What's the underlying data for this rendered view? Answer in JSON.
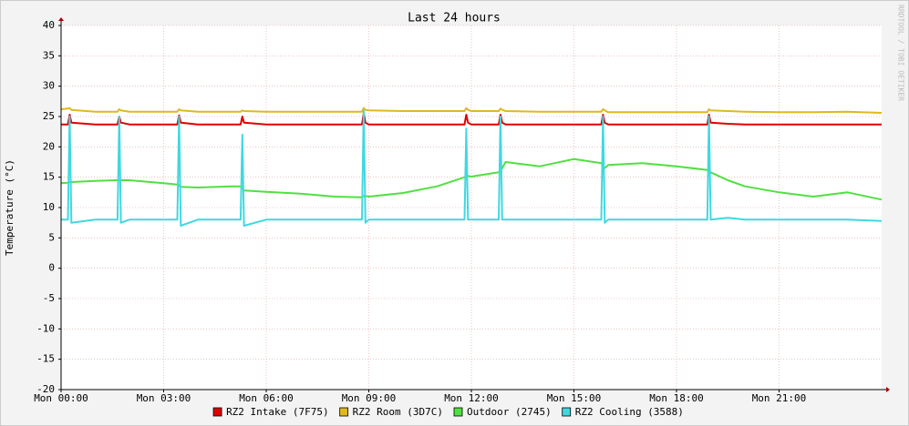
{
  "chart_data": {
    "type": "line",
    "title": "Last 24 hours",
    "y_label": "Temperature (°C)",
    "watermark": "RRDTOOL / TOBI OETIKER",
    "x": [
      0,
      0.2,
      0.25,
      0.3,
      1,
      1.65,
      1.7,
      1.75,
      2,
      3,
      3.4,
      3.45,
      3.5,
      4,
      5,
      5.25,
      5.3,
      5.35,
      6,
      7,
      8,
      8.8,
      8.85,
      8.9,
      9,
      10,
      11,
      11.8,
      11.85,
      11.9,
      12,
      12.8,
      12.85,
      12.9,
      13,
      14,
      15,
      15.8,
      15.85,
      15.9,
      16,
      17,
      18,
      18.9,
      18.95,
      19,
      19.5,
      20,
      21,
      22,
      23,
      24
    ],
    "xlim": [
      0,
      24
    ],
    "xticks": [
      {
        "value": 0,
        "label": "Mon 00:00"
      },
      {
        "value": 3,
        "label": "Mon 03:00"
      },
      {
        "value": 6,
        "label": "Mon 06:00"
      },
      {
        "value": 9,
        "label": "Mon 09:00"
      },
      {
        "value": 12,
        "label": "Mon 12:00"
      },
      {
        "value": 15,
        "label": "Mon 15:00"
      },
      {
        "value": 18,
        "label": "Mon 18:00"
      },
      {
        "value": 21,
        "label": "Mon 21:00"
      }
    ],
    "ylim": [
      -20,
      40
    ],
    "yticks": [
      -20,
      -15,
      -10,
      -5,
      0,
      5,
      10,
      15,
      20,
      25,
      30,
      35,
      40
    ],
    "grid": true,
    "legend": "bottom",
    "series": [
      {
        "name": "RZ2 Intake (7F75)",
        "color": "#e00000",
        "values": [
          23.7,
          23.7,
          25.3,
          24,
          23.7,
          23.7,
          25,
          24,
          23.7,
          23.7,
          23.7,
          25.2,
          24,
          23.7,
          23.7,
          23.7,
          25,
          24,
          23.7,
          23.7,
          23.7,
          23.7,
          25.5,
          24,
          23.7,
          23.7,
          23.7,
          23.7,
          25.3,
          24,
          23.7,
          23.7,
          25.3,
          24,
          23.7,
          23.7,
          23.7,
          23.7,
          25.3,
          24,
          23.7,
          23.7,
          23.7,
          23.7,
          25.3,
          24,
          23.8,
          23.7,
          23.7,
          23.7,
          23.7,
          23.7
        ]
      },
      {
        "name": "RZ2 Room (3D7C)",
        "color": "#e0b820",
        "values": [
          26.2,
          26.3,
          26.4,
          26.1,
          25.8,
          25.8,
          26.2,
          26,
          25.8,
          25.8,
          25.8,
          26.2,
          26,
          25.8,
          25.8,
          25.8,
          26,
          25.9,
          25.8,
          25.8,
          25.8,
          25.8,
          26.4,
          26.1,
          26,
          25.9,
          25.9,
          25.9,
          26.4,
          26.1,
          25.9,
          25.9,
          26.3,
          26.1,
          25.9,
          25.8,
          25.8,
          25.8,
          26.2,
          26,
          25.7,
          25.7,
          25.7,
          25.7,
          26.2,
          26,
          25.9,
          25.8,
          25.7,
          25.7,
          25.8,
          25.6
        ]
      },
      {
        "name": "Outdoor (2745)",
        "color": "#50e040",
        "values": [
          14,
          14.1,
          14.2,
          14.2,
          14.4,
          14.5,
          14.5,
          14.5,
          14.5,
          14,
          13.8,
          13.6,
          13.4,
          13.3,
          13.5,
          13.5,
          13.3,
          12.8,
          12.6,
          12.3,
          11.8,
          11.7,
          11.9,
          11.9,
          11.8,
          12.4,
          13.5,
          15,
          15.2,
          15.2,
          15.1,
          15.8,
          16,
          16.5,
          17.5,
          16.8,
          18,
          17.3,
          16.8,
          16.5,
          17,
          17.3,
          16.8,
          16.2,
          16,
          15.8,
          14.5,
          13.5,
          12.5,
          11.8,
          12.5,
          11.3
        ]
      },
      {
        "name": "RZ2 Cooling (3588)",
        "color": "#40d8e0",
        "values": [
          8,
          8,
          25,
          7.5,
          8,
          8,
          25,
          7.5,
          8,
          8,
          8,
          25,
          7,
          8,
          8,
          8,
          22,
          7,
          8,
          8,
          8,
          8,
          26,
          7.5,
          8,
          8,
          8,
          8,
          23,
          8,
          8,
          8,
          25,
          8,
          8,
          8,
          8,
          8,
          25,
          7.5,
          8,
          8,
          8,
          8,
          25,
          8,
          8.3,
          8,
          8,
          8,
          8,
          7.8
        ]
      }
    ]
  }
}
